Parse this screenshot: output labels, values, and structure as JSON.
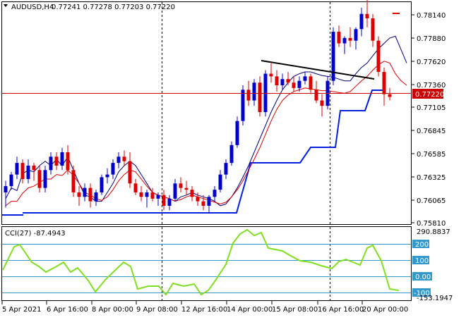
{
  "header": {
    "symbol": "AUDUSD,H4",
    "ohlc": "0.77241 0.77278 0.77203 0.77220"
  },
  "price_scale": [
    "0.78140",
    "0.77880",
    "0.77620",
    "0.77360",
    "0.77105",
    "0.76845",
    "0.76585",
    "0.76325",
    "0.76065",
    "0.75810"
  ],
  "current_price": "0.77220",
  "cci": {
    "label": "CCI(27) -87.4943",
    "scale_top": "290.8837",
    "scale_bottom": "-153.1947",
    "levels": [
      "200",
      "100",
      "0.00",
      "-100"
    ]
  },
  "time_axis": [
    "5 Apr 2021",
    "6 Apr 16:00",
    "8 Apr 00:00",
    "9 Apr 08:00",
    "12 Apr 16:00",
    "14 Apr 00:00",
    "15 Apr 08:00",
    "16 Apr 16:00",
    "20 Apr 00:00"
  ],
  "colors": {
    "bull": "#0000cc",
    "bear": "#dd0000",
    "ma_slow": "#000080",
    "ma_fast": "#dd0000",
    "stop_line": "#0022dd",
    "cci_line": "#7fe020",
    "level_line": "#3399cc",
    "price_line": "#cc0000",
    "trend_line": "#000000"
  },
  "chart_data": {
    "type": "candlestick",
    "series": [
      {
        "values": [
          0.7608,
          0.762,
          0.7617,
          0.7636,
          0.764,
          0.7638,
          0.7645,
          0.765,
          0.7645,
          0.7652,
          0.7645,
          0.7655,
          0.764,
          0.7625,
          0.7612,
          0.761,
          0.7605,
          0.7605,
          0.7615,
          0.7625,
          0.7638,
          0.7645,
          0.765,
          0.7645,
          0.7635,
          0.7625,
          0.7615,
          0.7612,
          0.761,
          0.7608,
          0.7605,
          0.761,
          0.7612,
          0.7615,
          0.7612,
          0.761,
          0.7608,
          0.7605,
          0.76,
          0.7602,
          0.761,
          0.762,
          0.7632,
          0.7645,
          0.766,
          0.7675,
          0.769,
          0.7705,
          0.7718,
          0.773,
          0.7738,
          0.7745,
          0.7748,
          0.775,
          0.775,
          0.7748,
          0.7746,
          0.7745,
          0.7744,
          0.7742,
          0.774,
          0.774,
          0.7748,
          0.7755,
          0.776,
          0.7768,
          0.7776,
          0.7782,
          0.7788,
          0.779,
          0.7775,
          0.776
        ]
      },
      {
        "values": [
          0.76,
          0.7605,
          0.7605,
          0.7614,
          0.762,
          0.7622,
          0.7626,
          0.763,
          0.763,
          0.7635,
          0.7634,
          0.764,
          0.7634,
          0.7625,
          0.7615,
          0.7612,
          0.7608,
          0.7606,
          0.761,
          0.7618,
          0.7628,
          0.7635,
          0.764,
          0.7638,
          0.763,
          0.7622,
          0.7615,
          0.7612,
          0.761,
          0.7608,
          0.7605,
          0.7607,
          0.761,
          0.7612,
          0.761,
          0.7608,
          0.7606,
          0.7604,
          0.7602,
          0.7604,
          0.761,
          0.7618,
          0.7628,
          0.764,
          0.7652,
          0.7665,
          0.768,
          0.7695,
          0.7708,
          0.7718,
          0.7724,
          0.7728,
          0.773,
          0.7732,
          0.7731,
          0.773,
          0.7729,
          0.7729,
          0.7728,
          0.7727,
          0.7726,
          0.7728,
          0.7734,
          0.774,
          0.7745,
          0.7752,
          0.7758,
          0.7762,
          0.776,
          0.7748,
          0.774,
          0.7735
        ]
      }
    ]
  }
}
